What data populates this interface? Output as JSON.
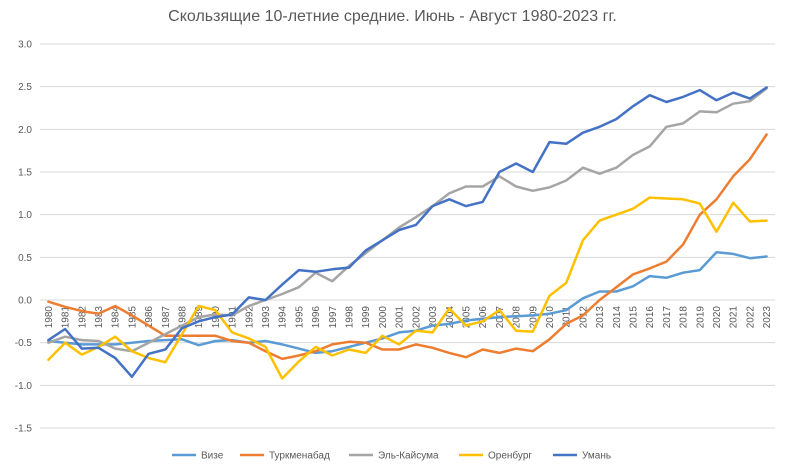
{
  "chart_data": {
    "type": "line",
    "title": "Скользящие 10-летние средние. Июнь - Август 1980-2023 гг.",
    "xlabel": "",
    "ylabel": "",
    "ylim": [
      -1.5,
      3.0
    ],
    "ytick_labels": [
      "3.0",
      "2.5",
      "2.0",
      "1.5",
      "1.0",
      "0.5",
      "0.0",
      "-0.5",
      "-1.0",
      "-1.5"
    ],
    "grid": true,
    "legend": "bottom",
    "x": [
      "1980",
      "1981",
      "1982",
      "1983",
      "1984",
      "1985",
      "1986",
      "1987",
      "1988",
      "1989",
      "1990",
      "1991",
      "1992",
      "1993",
      "1994",
      "1995",
      "1996",
      "1997",
      "1998",
      "1999",
      "2000",
      "2001",
      "2002",
      "2003",
      "2004",
      "2005",
      "2006",
      "2007",
      "2008",
      "2009",
      "2010",
      "2011",
      "2012",
      "2013",
      "2014",
      "2015",
      "2016",
      "2017",
      "2018",
      "2019",
      "2020",
      "2021",
      "2022",
      "2023"
    ],
    "series": [
      {
        "name": "Визе",
        "color": "#5b9bd5",
        "values": [
          -0.48,
          -0.5,
          -0.52,
          -0.52,
          -0.52,
          -0.5,
          -0.48,
          -0.47,
          -0.46,
          -0.53,
          -0.48,
          -0.47,
          -0.5,
          -0.48,
          -0.52,
          -0.57,
          -0.62,
          -0.6,
          -0.55,
          -0.5,
          -0.45,
          -0.38,
          -0.36,
          -0.3,
          -0.28,
          -0.24,
          -0.22,
          -0.2,
          -0.19,
          -0.18,
          -0.16,
          -0.12,
          0.02,
          0.1,
          0.1,
          0.16,
          0.28,
          0.26,
          0.32,
          0.35,
          0.56,
          0.54,
          0.49,
          0.51
        ]
      },
      {
        "name": "Туркменабад",
        "color": "#ed7d31",
        "values": [
          -0.02,
          -0.08,
          -0.13,
          -0.16,
          -0.07,
          -0.18,
          -0.3,
          -0.42,
          -0.42,
          -0.42,
          -0.42,
          -0.48,
          -0.5,
          -0.6,
          -0.69,
          -0.65,
          -0.6,
          -0.52,
          -0.49,
          -0.5,
          -0.58,
          -0.58,
          -0.52,
          -0.56,
          -0.62,
          -0.67,
          -0.58,
          -0.62,
          -0.57,
          -0.6,
          -0.46,
          -0.28,
          -0.18,
          0.0,
          0.15,
          0.3,
          0.37,
          0.45,
          0.65,
          1.0,
          1.18,
          1.45,
          1.65,
          1.94
        ]
      },
      {
        "name": "Эль-Кайсума",
        "color": "#a5a5a5",
        "values": [
          -0.5,
          -0.43,
          -0.47,
          -0.48,
          -0.57,
          -0.6,
          -0.5,
          -0.4,
          -0.3,
          -0.2,
          -0.17,
          -0.18,
          -0.07,
          0.0,
          0.07,
          0.15,
          0.32,
          0.22,
          0.4,
          0.55,
          0.7,
          0.85,
          0.97,
          1.1,
          1.25,
          1.33,
          1.33,
          1.45,
          1.33,
          1.28,
          1.32,
          1.4,
          1.55,
          1.48,
          1.55,
          1.7,
          1.8,
          2.03,
          2.07,
          2.21,
          2.2,
          2.3,
          2.33,
          2.48
        ]
      },
      {
        "name": "Оренбург",
        "color": "#ffc000",
        "values": [
          -0.7,
          -0.5,
          -0.64,
          -0.55,
          -0.43,
          -0.6,
          -0.68,
          -0.73,
          -0.4,
          -0.07,
          -0.12,
          -0.38,
          -0.45,
          -0.55,
          -0.92,
          -0.72,
          -0.55,
          -0.65,
          -0.58,
          -0.62,
          -0.42,
          -0.52,
          -0.36,
          -0.38,
          -0.1,
          -0.3,
          -0.25,
          -0.12,
          -0.36,
          -0.37,
          0.05,
          0.2,
          0.7,
          0.93,
          1.0,
          1.07,
          1.2,
          1.19,
          1.18,
          1.13,
          0.8,
          1.14,
          0.92,
          0.93
        ]
      },
      {
        "name": "Умань",
        "color": "#4472c4",
        "values": [
          -0.47,
          -0.34,
          -0.57,
          -0.56,
          -0.68,
          -0.9,
          -0.63,
          -0.58,
          -0.33,
          -0.25,
          -0.2,
          -0.17,
          0.03,
          0.0,
          0.18,
          0.35,
          0.33,
          0.36,
          0.38,
          0.58,
          0.7,
          0.82,
          0.88,
          1.1,
          1.18,
          1.1,
          1.15,
          1.5,
          1.6,
          1.5,
          1.85,
          1.83,
          1.96,
          2.03,
          2.12,
          2.27,
          2.4,
          2.32,
          2.38,
          2.46,
          2.34,
          2.43,
          2.36,
          2.49
        ]
      }
    ]
  }
}
